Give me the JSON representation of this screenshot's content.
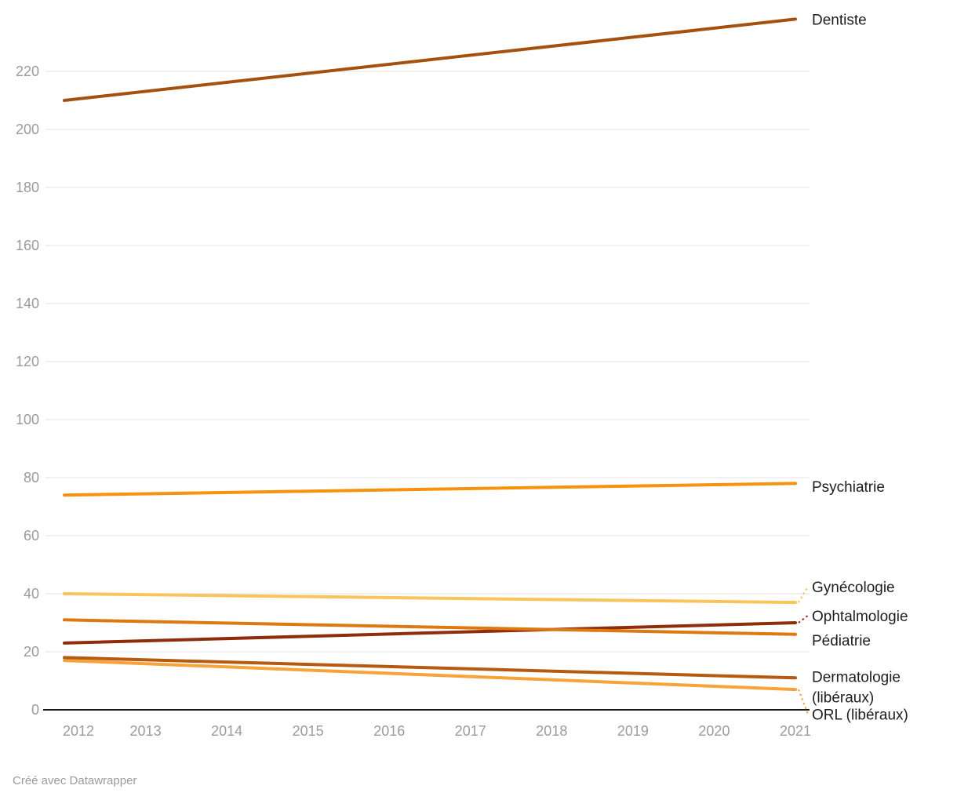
{
  "footer": {
    "credit": "Créé avec Datawrapper"
  },
  "colors": {
    "background": "#FFFFFF",
    "grid": "#E3E3E3",
    "axis_line": "#1A1A1A",
    "axis_text": "#9B9B9B",
    "label_text": "#1D1D1D"
  },
  "chart_data": {
    "type": "line",
    "title": "",
    "xlabel": "",
    "ylabel": "",
    "x": [
      2012,
      2021
    ],
    "x_ticks": [
      "2012",
      "2013",
      "2014",
      "2015",
      "2016",
      "2017",
      "2018",
      "2019",
      "2020",
      "2021"
    ],
    "y_ticks": [
      0,
      20,
      40,
      60,
      80,
      100,
      120,
      140,
      160,
      180,
      200,
      220
    ],
    "ylim": [
      0,
      240
    ],
    "grid": "horizontal",
    "legend_position": "direct-labels-right",
    "series": [
      {
        "name": "Dentiste",
        "color": "#A4500E",
        "values": [
          210,
          238
        ],
        "label_lines": [
          "Dentiste"
        ],
        "label_value": 238
      },
      {
        "name": "Psychiatrie",
        "color": "#F6920B",
        "values": [
          74,
          78
        ],
        "label_lines": [
          "Psychiatrie"
        ],
        "label_value": 77
      },
      {
        "name": "Gynécologie",
        "color": "#FAC45C",
        "values": [
          40,
          37
        ],
        "label_lines": [
          "Gynécologie"
        ],
        "label_value": 42.5
      },
      {
        "name": "Ophtalmologie",
        "color": "#8E2C0B",
        "values": [
          23,
          30
        ],
        "label_lines": [
          "Ophtalmologie"
        ],
        "label_value": 32.5
      },
      {
        "name": "Pédiatrie",
        "color": "#DE7810",
        "values": [
          31,
          26
        ],
        "label_lines": [
          "Pédiatrie"
        ],
        "label_value": 24
      },
      {
        "name": "ORL (libéraux)",
        "color": "#F7A339",
        "values": [
          17,
          7
        ],
        "label_lines": [
          "ORL (libéraux)"
        ],
        "label_value": -1.5
      },
      {
        "name": "Dermatologie (libéraux)",
        "color": "#B65A10",
        "values": [
          18,
          11
        ],
        "label_lines": [
          "Dermatologie",
          "(libéraux)"
        ],
        "label_value": 11.5
      }
    ]
  }
}
